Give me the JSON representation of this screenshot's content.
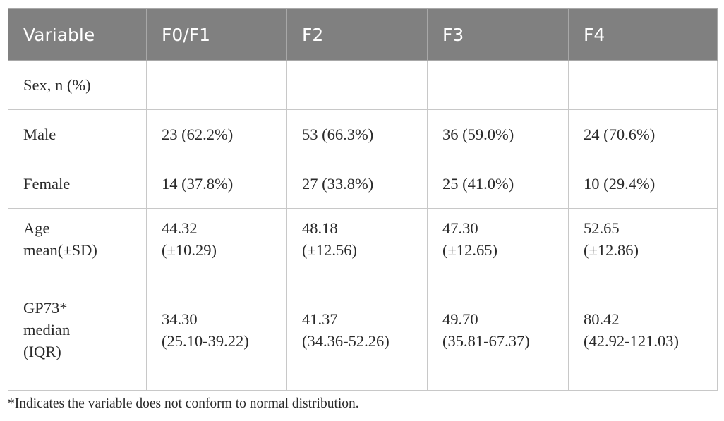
{
  "table": {
    "headers": [
      "Variable",
      "F0/F1",
      "F2",
      "F3",
      "F4"
    ],
    "rows": [
      {
        "label": [
          "Sex, n (%)"
        ],
        "cells": [
          [
            ""
          ],
          [
            ""
          ],
          [
            ""
          ],
          [
            ""
          ]
        ]
      },
      {
        "label": [
          "Male"
        ],
        "cells": [
          [
            "23 (62.2%)"
          ],
          [
            "53 (66.3%)"
          ],
          [
            "36 (59.0%)"
          ],
          [
            "24 (70.6%)"
          ]
        ]
      },
      {
        "label": [
          "Female"
        ],
        "cells": [
          [
            "14 (37.8%)"
          ],
          [
            "27 (33.8%)"
          ],
          [
            "25 (41.0%)"
          ],
          [
            "10 (29.4%)"
          ]
        ]
      },
      {
        "label": [
          "Age",
          "mean(±SD)"
        ],
        "cells": [
          [
            "44.32",
            "(±10.29)"
          ],
          [
            "48.18",
            "(±12.56)"
          ],
          [
            "47.30",
            "(±12.65)"
          ],
          [
            "52.65",
            "(±12.86)"
          ]
        ]
      },
      {
        "label": [
          "GP73*",
          "median",
          "(IQR)"
        ],
        "cells": [
          [
            "34.30",
            "(25.10-39.22)"
          ],
          [
            "41.37",
            "(34.36-52.26)"
          ],
          [
            "49.70",
            "(35.81-67.37)"
          ],
          [
            "80.42",
            "(42.92-121.03)"
          ]
        ]
      }
    ],
    "footnote": "*Indicates the variable does not conform to normal distribution."
  },
  "colors": {
    "header_bg": "#808080",
    "header_text": "#ffffff",
    "border": "#c8c8c8",
    "text": "#2a2a2a"
  }
}
